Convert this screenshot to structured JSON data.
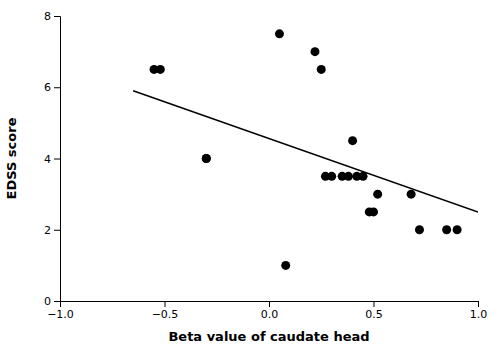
{
  "chart_data": {
    "type": "scatter",
    "x_label": "Beta value of caudate head",
    "y_label": "EDSS score",
    "series": [
      {
        "type": "scatter",
        "color": "black",
        "x": [
          -0.55,
          -0.52,
          -0.3,
          -0.3,
          0.05,
          0.08,
          0.22,
          0.25,
          0.27,
          0.3,
          0.35,
          0.38,
          0.4,
          0.42,
          0.45,
          0.48,
          0.5,
          0.52,
          0.68,
          0.72,
          0.85,
          0.9
        ],
        "values": [
          6.5,
          6.5,
          4.0,
          4.0,
          7.5,
          1.0,
          7.0,
          6.5,
          3.5,
          3.5,
          3.5,
          3.5,
          4.5,
          3.5,
          3.5,
          2.5,
          2.5,
          3.0,
          3.0,
          2.0,
          2.0,
          2.0
        ]
      },
      {
        "type": "line",
        "color": "black",
        "x": [
          -0.65,
          1.0
        ],
        "values": [
          5.9,
          2.5
        ]
      }
    ],
    "xlim": [
      -1.0,
      1.0
    ],
    "ylim": [
      0,
      8
    ],
    "xticks": [
      {
        "value": -1.0,
        "label": "−1.0"
      },
      {
        "value": -0.5,
        "label": "−0.5"
      },
      {
        "value": 0.0,
        "label": "0.0"
      },
      {
        "value": 0.5,
        "label": "0.5"
      },
      {
        "value": 1.0,
        "label": "1.0"
      }
    ],
    "yticks": [
      0,
      2,
      4,
      6,
      8
    ]
  }
}
